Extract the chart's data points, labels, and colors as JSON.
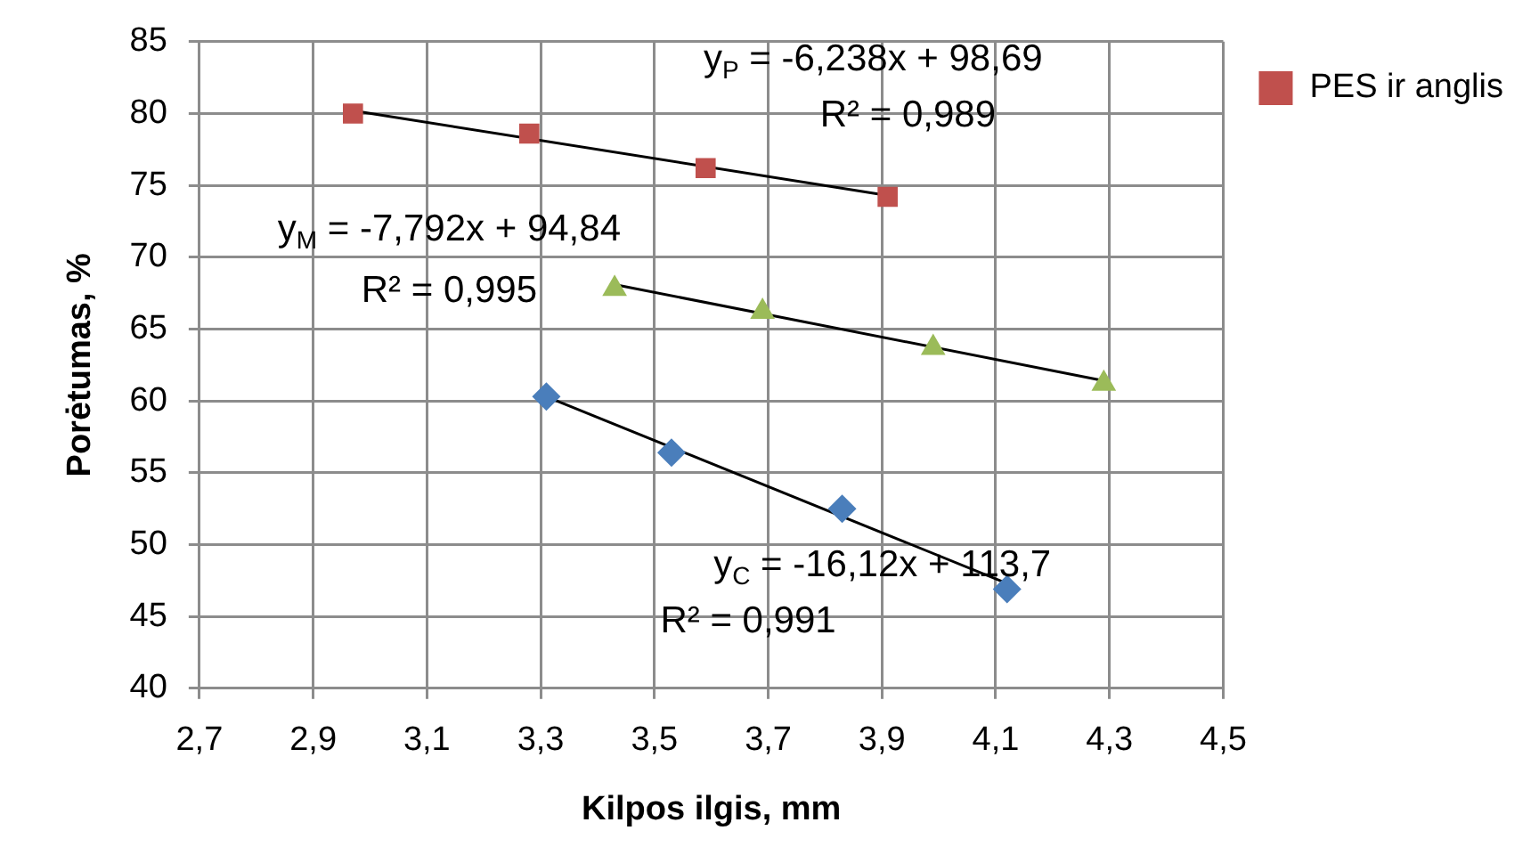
{
  "chart_data": {
    "type": "scatter",
    "xlabel": "Kilpos ilgis, mm",
    "ylabel": "Porėtumas, %",
    "xlim": [
      2.7,
      4.5
    ],
    "xticks": [
      {
        "value": 2.7,
        "label": "2,7"
      },
      {
        "value": 2.9,
        "label": "2,9"
      },
      {
        "value": 3.1,
        "label": "3,1"
      },
      {
        "value": 3.3,
        "label": "3,3"
      },
      {
        "value": 3.5,
        "label": "3,5"
      },
      {
        "value": 3.7,
        "label": "3,7"
      },
      {
        "value": 3.9,
        "label": "3,9"
      },
      {
        "value": 4.1,
        "label": "4,1"
      },
      {
        "value": 4.3,
        "label": "4,3"
      },
      {
        "value": 4.5,
        "label": "4,5"
      }
    ],
    "ylim": [
      40,
      85
    ],
    "yticks": [
      40,
      45,
      50,
      55,
      60,
      65,
      70,
      75,
      80,
      85
    ],
    "grid": true,
    "legend": "right",
    "series": [
      {
        "type": "scatter",
        "marker": "diamond",
        "color": "#4a7ebb",
        "x": [
          3.31,
          3.53,
          3.83,
          4.12
        ],
        "values": [
          60.3,
          56.4,
          52.5,
          46.9
        ]
      },
      {
        "type": "scatter",
        "marker": "square",
        "name": "PES ir anglis",
        "color": "#c0504d",
        "x": [
          2.97,
          3.28,
          3.59,
          3.91
        ],
        "values": [
          80.0,
          78.6,
          76.2,
          74.2
        ]
      },
      {
        "type": "scatter",
        "marker": "triangle",
        "color": "#9bbb59",
        "x": [
          3.43,
          3.69,
          3.99,
          4.29
        ],
        "values": [
          67.8,
          66.2,
          63.7,
          61.2
        ]
      },
      {
        "type": "line",
        "marker": "none",
        "color": "#000000",
        "x": [
          2.97,
          3.91
        ],
        "values": [
          80.2,
          74.3
        ]
      },
      {
        "type": "line",
        "marker": "none",
        "color": "#000000",
        "x": [
          3.43,
          4.29
        ],
        "values": [
          68.1,
          61.4
        ]
      },
      {
        "type": "line",
        "marker": "none",
        "color": "#000000",
        "x": [
          3.31,
          4.12
        ],
        "values": [
          60.3,
          47.3
        ]
      }
    ],
    "annotations": [
      "y$_{P}$ = -6,238x + 98,69",
      "R² = 0,989",
      "y$_{M}$ = -7,792x + 94,84",
      "R² = 0,995",
      "y$_{C}$ = -16,12x + 113,7",
      "R² = 0,991"
    ]
  }
}
